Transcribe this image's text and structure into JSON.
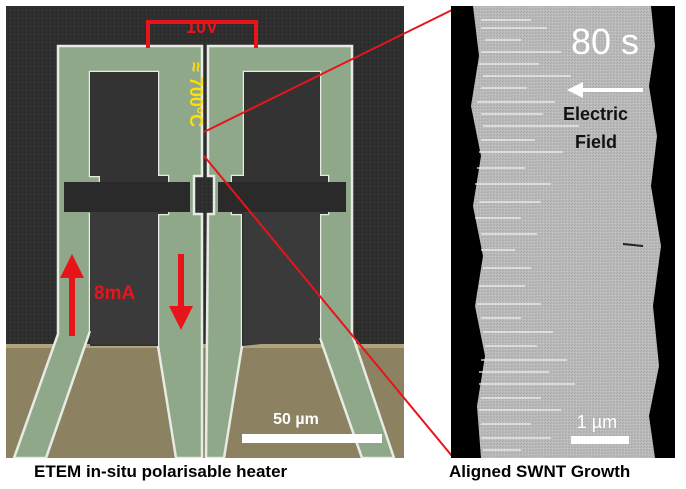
{
  "left_image": {
    "voltage_label": "10V",
    "temperature_label": "≈ 700°C",
    "current_label": "8mA",
    "scale_bar_label": "50 µm",
    "colors": {
      "annotation_red": "#e8141b",
      "temperature_yellow": "#ffe000",
      "heater_green": "#8fa88a",
      "background": "#2b2b2b",
      "substrate_tan": "#8c8160"
    }
  },
  "right_image": {
    "time_label": "80 s",
    "field_label_line1": "Electric",
    "field_label_line2": "Field",
    "scale_bar_label": "1 µm"
  },
  "captions": {
    "left": "ETEM in-situ polarisable heater",
    "right": "Aligned SWNT Growth"
  }
}
